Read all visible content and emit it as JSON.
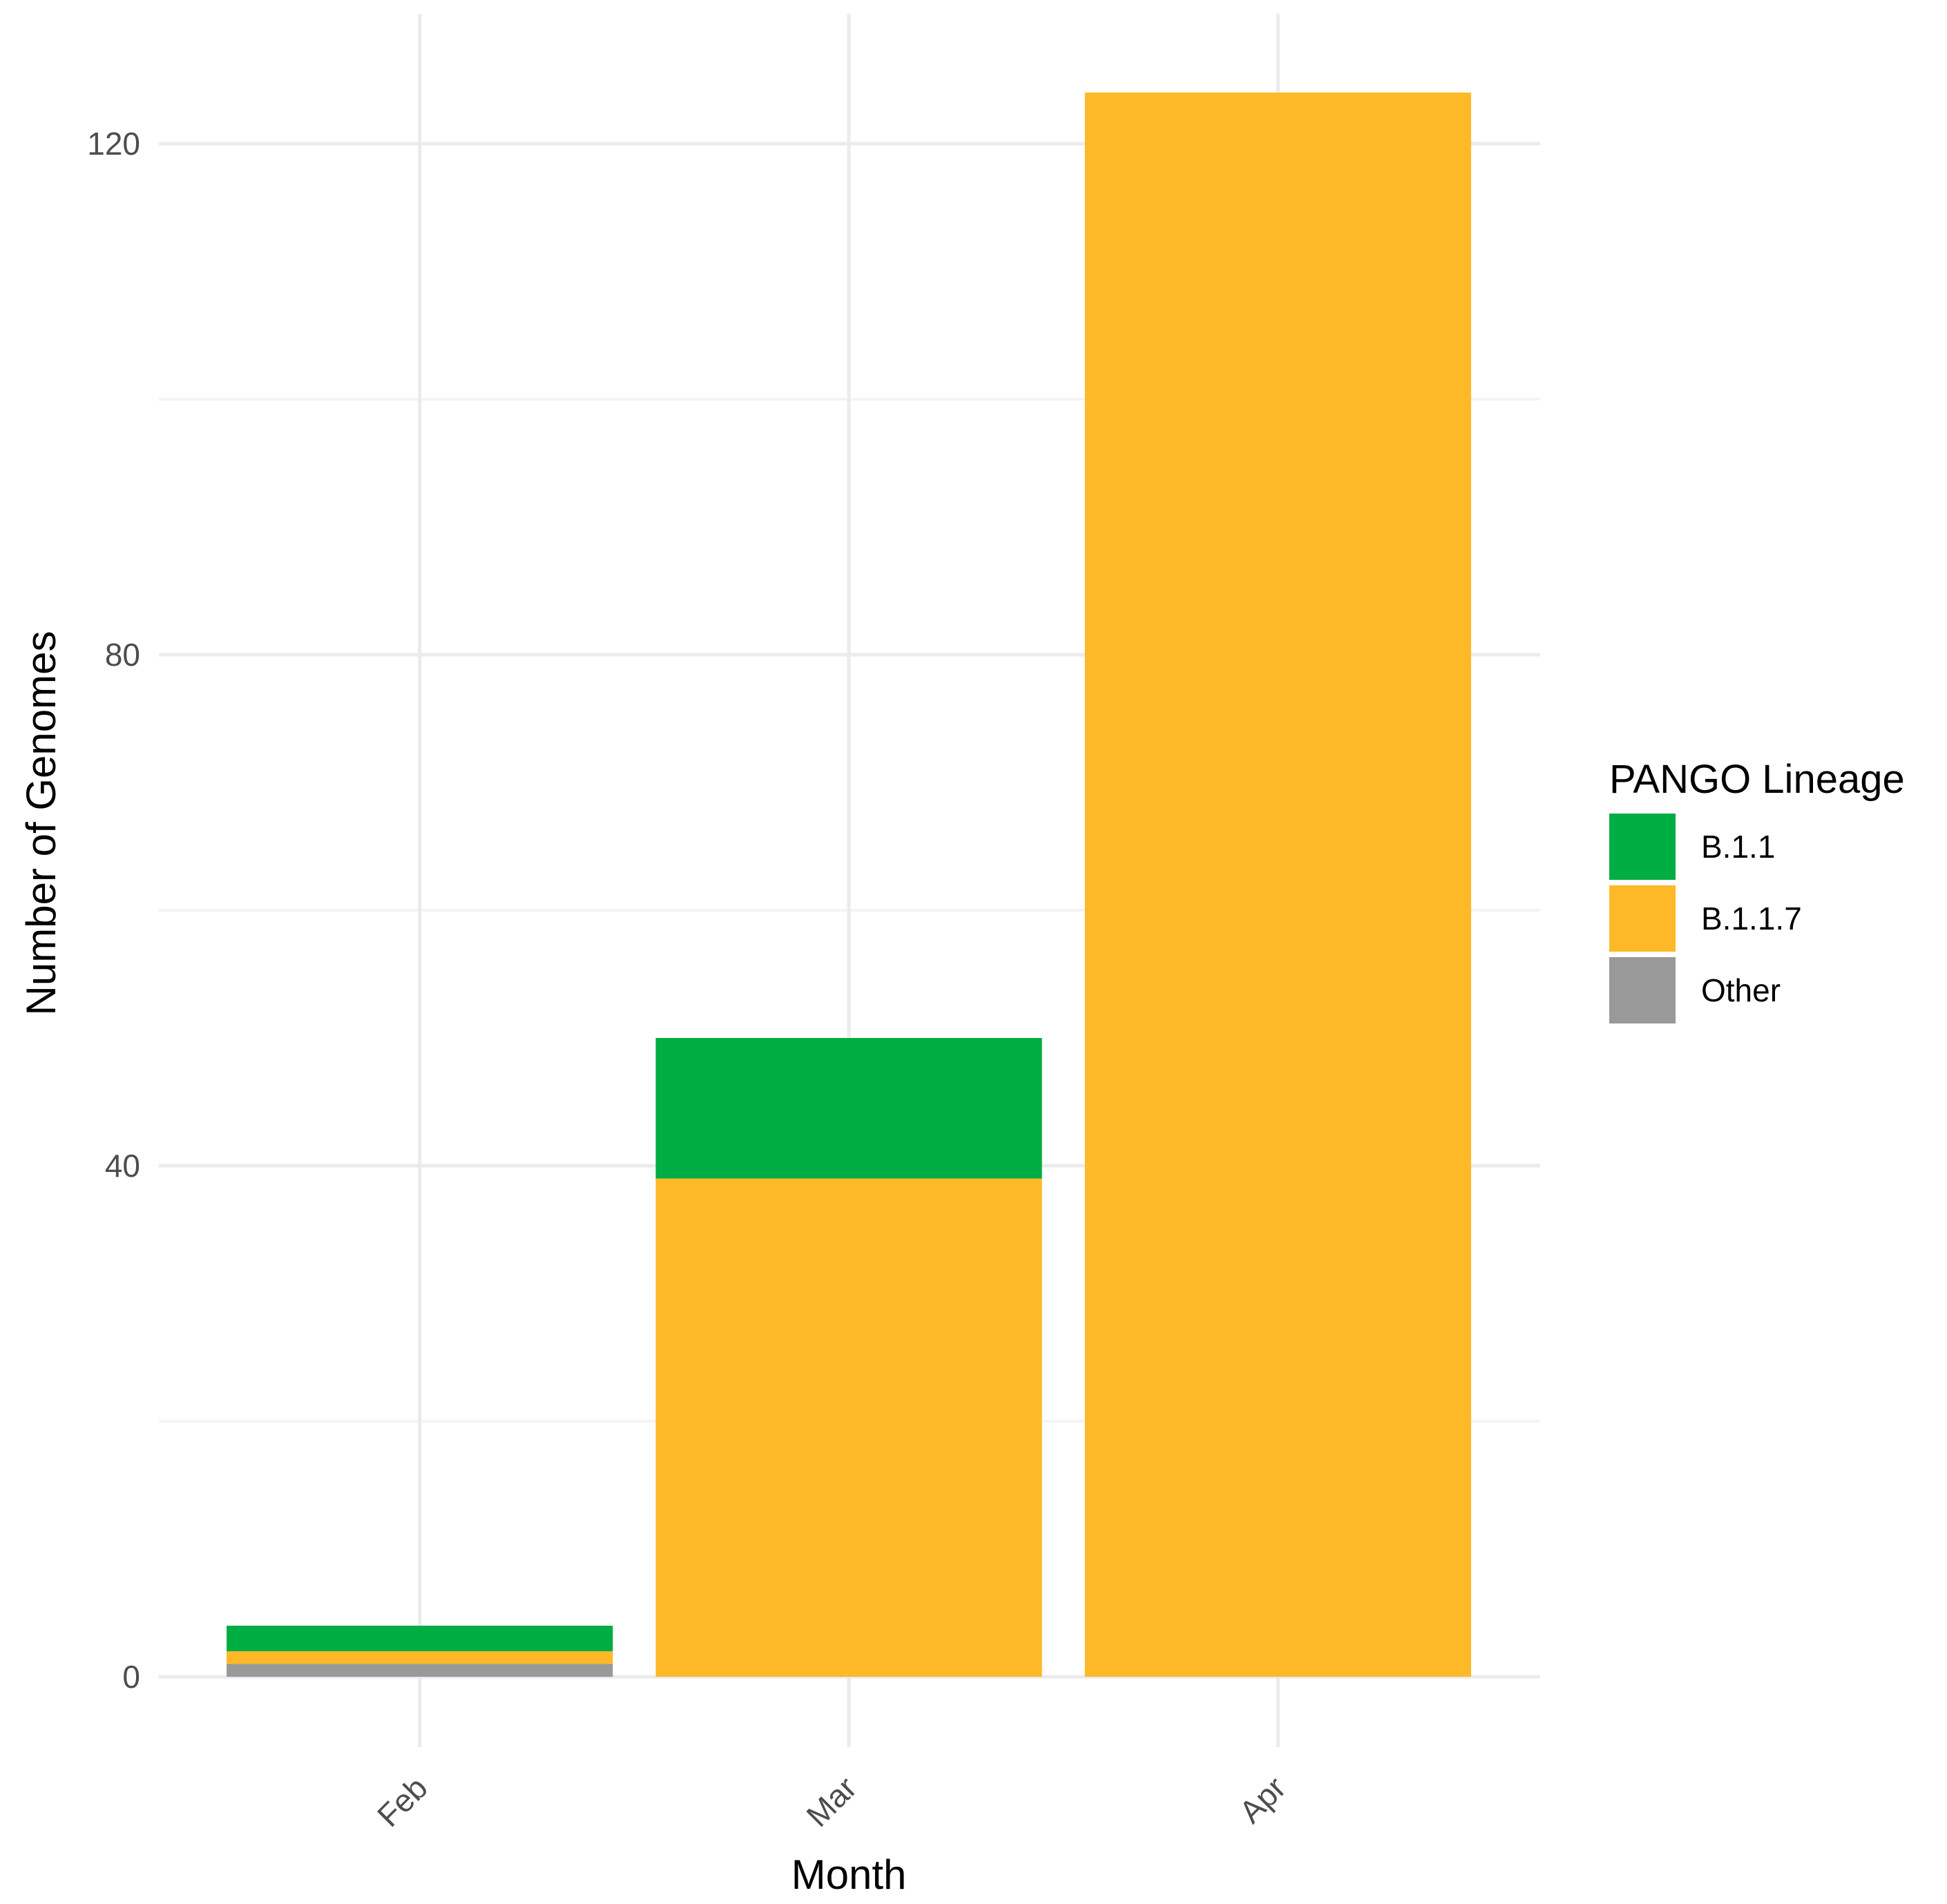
{
  "chart_data": {
    "type": "bar",
    "stacked": true,
    "title": "",
    "xlabel": "Month",
    "ylabel": "Number of Genomes",
    "categories": [
      "Feb",
      "Mar",
      "Apr"
    ],
    "series": [
      {
        "name": "Other",
        "color": "#999999",
        "values": [
          1,
          0,
          0
        ]
      },
      {
        "name": "B.1.1.7",
        "color": "#FDB927",
        "values": [
          1,
          39,
          124
        ]
      },
      {
        "name": "B.1.1",
        "color": "#00AD43",
        "values": [
          2,
          11,
          0
        ]
      }
    ],
    "ylim": [
      -5,
      130
    ],
    "yticks": [
      0,
      40,
      80,
      120
    ],
    "grid": true,
    "legend": {
      "title": "PANGO Lineage",
      "position": "right",
      "order": [
        "B.1.1",
        "B.1.1.7",
        "Other"
      ]
    }
  }
}
